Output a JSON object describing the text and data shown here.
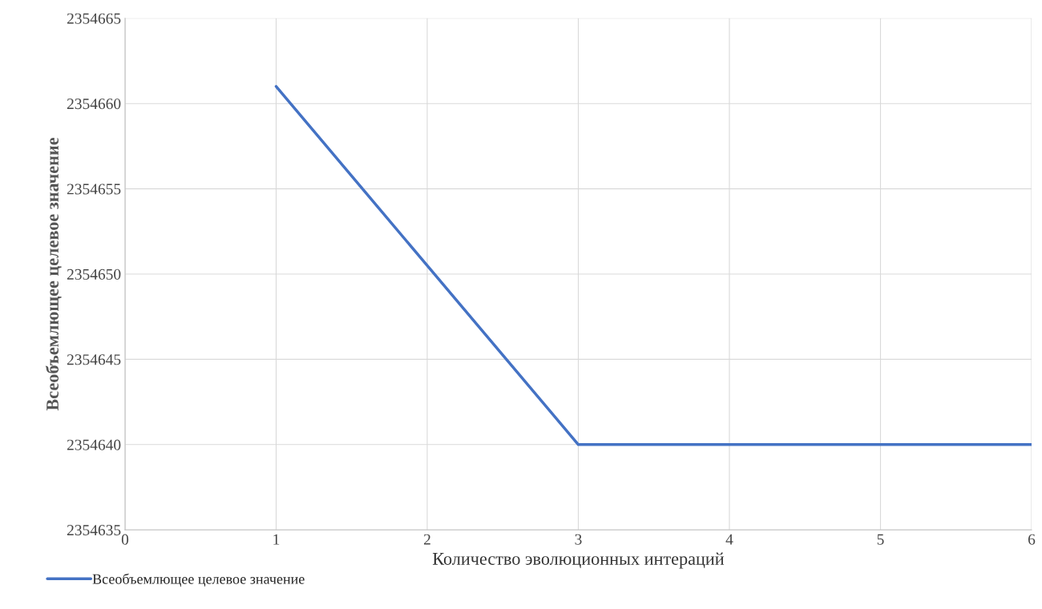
{
  "chart_data": {
    "type": "line",
    "xlabel": "Количество эволюционных интераций",
    "ylabel": "Всеобъемлющее целевое значение",
    "x": [
      1,
      2,
      3,
      4,
      5,
      6
    ],
    "series": [
      {
        "name": "Всеобъемлющее целевое значение",
        "color": "#4472c4",
        "values": [
          2354661,
          2354650.5,
          2354640,
          2354640,
          2354640,
          2354640
        ]
      }
    ],
    "xlim": [
      0,
      6
    ],
    "xticks": [
      0,
      1,
      2,
      3,
      4,
      5,
      6
    ],
    "ylim": [
      2354635,
      2354665
    ],
    "yticks": [
      2354635,
      2354640,
      2354645,
      2354650,
      2354655,
      2354660,
      2354665
    ],
    "grid": true,
    "legend": "bottom left",
    "marker": "none",
    "line_style": "solid"
  }
}
